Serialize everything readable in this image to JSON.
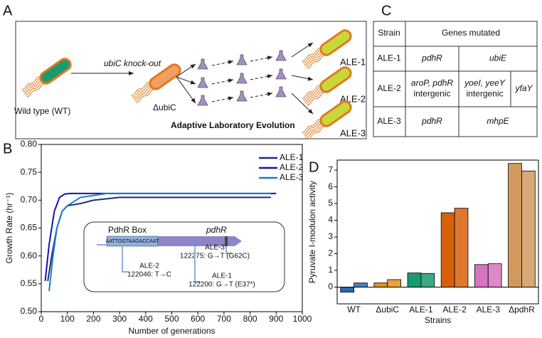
{
  "panels": {
    "a": "A",
    "b": "B",
    "c": "C",
    "d": "D"
  },
  "diagram": {
    "knockout": "ubiC knock-out",
    "wild_type": "Wild type (WT)",
    "mutant": "ΔubiC",
    "ale": [
      "ALE-1",
      "ALE-2",
      "ALE-3"
    ],
    "process": "Adaptive Laboratory Evolution"
  },
  "table": {
    "header": [
      "Strain",
      "Genes mutated"
    ],
    "rows": [
      [
        "ALE-1",
        [
          "pdhR"
        ],
        [
          "ubiE"
        ]
      ],
      [
        "ALE-2",
        [
          "aroP, pdhR",
          "intergenic"
        ],
        [
          "yoeI, yeeY",
          "intergenic"
        ],
        [
          "yfaY"
        ]
      ],
      [
        "ALE-3",
        [
          "pdhR"
        ],
        [
          "mhpE"
        ]
      ]
    ]
  },
  "inset": {
    "box": "PdhR Box",
    "sequence": "AATTGGTAAGACCAAT",
    "gene": "pdhR",
    "ale3": [
      "ALE-3",
      "122275: G→T (G62C)"
    ],
    "ale2": [
      "ALE-2",
      "122046: T→C"
    ],
    "ale1": [
      "ALE-1",
      "122200: G→T (E37*)"
    ]
  },
  "chart_data": [
    {
      "type": "line",
      "x_label": "Number of generations",
      "y_label": "Growth Rate (hr⁻¹)",
      "xlim": [
        0,
        1000
      ],
      "xticks": [
        0,
        100,
        200,
        300,
        400,
        500,
        600,
        700,
        800,
        900,
        1000
      ],
      "ylim": [
        0.5,
        0.8
      ],
      "yticks": [
        {
          "value": 0.5,
          "label": "0.50"
        },
        0.55,
        {
          "value": 0.6,
          "label": "0.60"
        },
        0.65,
        {
          "value": 0.7,
          "label": "0.70"
        },
        0.75,
        {
          "value": 0.8,
          "label": "0.80"
        }
      ],
      "legend": "top-right",
      "series": [
        {
          "name": "ALE-1",
          "color": "#1f2d7a",
          "x": [
            25,
            40,
            60,
            80,
            100,
            150,
            200,
            300,
            880
          ],
          "values": [
            0.555,
            0.6,
            0.65,
            0.68,
            0.69,
            0.694,
            0.7,
            0.705,
            0.705
          ]
        },
        {
          "name": "ALE-2",
          "color": "#1212b0",
          "x": [
            15,
            30,
            50,
            70,
            90,
            110,
            300,
            900
          ],
          "values": [
            0.555,
            0.62,
            0.68,
            0.705,
            0.711,
            0.712,
            0.712,
            0.712
          ]
        },
        {
          "name": "ALE-3",
          "color": "#1c7fc4",
          "x": [
            30,
            45,
            60,
            80,
            100,
            150,
            250,
            880
          ],
          "values": [
            0.537,
            0.6,
            0.65,
            0.68,
            0.69,
            0.705,
            0.712,
            0.712
          ]
        }
      ]
    },
    {
      "type": "bar",
      "y_label": "Pyruvate I-modulon activity",
      "x_label": "Strains",
      "categories": [
        "WT",
        "ΔubiC",
        "ALE-1",
        "ALE-2",
        "ALE-3",
        "ΔpdhR"
      ],
      "colors": [
        "#2a68b0",
        "#e8901c",
        "#1a9a70",
        "#d8600a",
        "#d674c0",
        "#d2995c"
      ],
      "ylim": [
        -1,
        7.6
      ],
      "yticks": [
        0,
        1,
        2,
        3,
        4,
        5,
        6,
        7
      ],
      "series": [
        {
          "values": [
            -0.3,
            0.25,
            0.85,
            4.45,
            1.35,
            7.4
          ]
        },
        {
          "values": [
            0.25,
            0.45,
            0.82,
            4.72,
            1.4,
            6.95
          ]
        }
      ]
    }
  ]
}
